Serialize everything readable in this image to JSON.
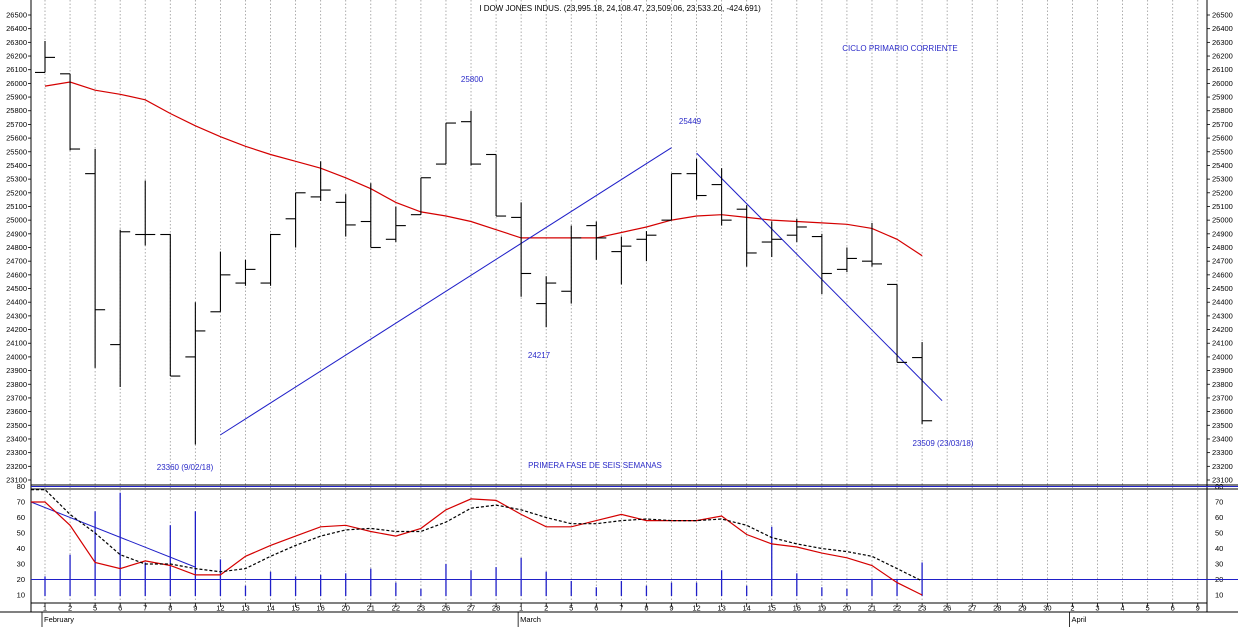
{
  "title": "I DOW JONES INDUS. (23,995.18, 24,108.47, 23,509.06, 23,533.20, -424.691)",
  "colors": {
    "price_bars": "#000000",
    "moving_average": "#d40000",
    "trendlines": "#1f1fc8",
    "annotations": "#2a2ac8",
    "oscillator_fast": "#d40000",
    "oscillator_slow": "#000000",
    "volume_bars": "#1f1fc8",
    "gridlines": "#9a9a9a"
  },
  "chart_data": [
    {
      "type": "ohlc",
      "panel": "price",
      "title": "I DOW JONES INDUS. (23,995.18, 24,108.47, 23,509.06, 23,533.20, -424.691)",
      "ylim": [
        23100,
        26500
      ],
      "y_ticks": [
        26500,
        26400,
        26300,
        26200,
        26100,
        26000,
        25900,
        25800,
        25700,
        25600,
        25500,
        25400,
        25300,
        25200,
        25100,
        25000,
        24900,
        24800,
        24700,
        24600,
        24500,
        24400,
        24300,
        24200,
        24100,
        24000,
        23900,
        23800,
        23700,
        23600,
        23500,
        23400,
        23300,
        23200,
        23100
      ],
      "x_day_labels": [
        "1",
        "2",
        "5",
        "6",
        "7",
        "8",
        "9",
        "12",
        "13",
        "14",
        "15",
        "16",
        "20",
        "21",
        "22",
        "23",
        "26",
        "27",
        "28",
        "1",
        "2",
        "5",
        "6",
        "7",
        "8",
        "9",
        "12",
        "13",
        "14",
        "15",
        "16",
        "19",
        "20",
        "21",
        "22",
        "23",
        "26",
        "27",
        "28",
        "29",
        "30",
        "2",
        "3",
        "4",
        "5",
        "6",
        "9"
      ],
      "x_month_labels": [
        {
          "label": "February",
          "at": "1"
        },
        {
          "label": "March",
          "at": "1"
        },
        {
          "label": "April",
          "at": "2"
        }
      ],
      "bars": [
        {
          "date": "Feb 1",
          "open": 26080,
          "high": 26310,
          "low": 26080,
          "close": 26190
        },
        {
          "date": "Feb 2",
          "open": 26070,
          "high": 26070,
          "low": 25510,
          "close": 25520
        },
        {
          "date": "Feb 5",
          "open": 25340,
          "high": 25520,
          "low": 23920,
          "close": 24345
        },
        {
          "date": "Feb 6",
          "open": 24090,
          "high": 24930,
          "low": 23780,
          "close": 24915
        },
        {
          "date": "Feb 7",
          "open": 24895,
          "high": 25290,
          "low": 24815,
          "close": 24895
        },
        {
          "date": "Feb 8",
          "open": 24895,
          "high": 24900,
          "low": 23860,
          "close": 23860
        },
        {
          "date": "Feb 9",
          "open": 24000,
          "high": 24400,
          "low": 23360,
          "close": 24190
        },
        {
          "date": "Feb 12",
          "open": 24330,
          "high": 24770,
          "low": 24330,
          "close": 24600
        },
        {
          "date": "Feb 13",
          "open": 24540,
          "high": 24710,
          "low": 24520,
          "close": 24640
        },
        {
          "date": "Feb 14",
          "open": 24540,
          "high": 24900,
          "low": 24520,
          "close": 24895
        },
        {
          "date": "Feb 15",
          "open": 25010,
          "high": 25200,
          "low": 24800,
          "close": 25200
        },
        {
          "date": "Feb 16",
          "open": 25170,
          "high": 25430,
          "low": 25140,
          "close": 25220
        },
        {
          "date": "Feb 20",
          "open": 25130,
          "high": 25190,
          "low": 24880,
          "close": 24965
        },
        {
          "date": "Feb 21",
          "open": 24990,
          "high": 25270,
          "low": 24800,
          "close": 24800
        },
        {
          "date": "Feb 22",
          "open": 24860,
          "high": 25100,
          "low": 24840,
          "close": 24960
        },
        {
          "date": "Feb 23",
          "open": 25040,
          "high": 25310,
          "low": 25040,
          "close": 25310
        },
        {
          "date": "Feb 26",
          "open": 25410,
          "high": 25710,
          "low": 25410,
          "close": 25710
        },
        {
          "date": "Feb 27",
          "open": 25720,
          "high": 25800,
          "low": 25400,
          "close": 25410
        },
        {
          "date": "Feb 28",
          "open": 25480,
          "high": 25480,
          "low": 25030,
          "close": 25030
        },
        {
          "date": "Mar 1",
          "open": 25020,
          "high": 25130,
          "low": 24440,
          "close": 24610
        },
        {
          "date": "Mar 2",
          "open": 24390,
          "high": 24590,
          "low": 24217,
          "close": 24540
        },
        {
          "date": "Mar 5",
          "open": 24480,
          "high": 24960,
          "low": 24390,
          "close": 24870
        },
        {
          "date": "Mar 6",
          "open": 24960,
          "high": 24990,
          "low": 24710,
          "close": 24870
        },
        {
          "date": "Mar 7",
          "open": 24770,
          "high": 24880,
          "low": 24530,
          "close": 24810
        },
        {
          "date": "Mar 8",
          "open": 24860,
          "high": 24920,
          "low": 24700,
          "close": 24890
        },
        {
          "date": "Mar 9",
          "open": 25000,
          "high": 25340,
          "low": 25000,
          "close": 25340
        },
        {
          "date": "Mar 12",
          "open": 25340,
          "high": 25449,
          "low": 25150,
          "close": 25180
        },
        {
          "date": "Mar 13",
          "open": 25260,
          "high": 25380,
          "low": 24960,
          "close": 25000
        },
        {
          "date": "Mar 14",
          "open": 25080,
          "high": 25110,
          "low": 24660,
          "close": 24760
        },
        {
          "date": "Mar 15",
          "open": 24840,
          "high": 24990,
          "low": 24730,
          "close": 24860
        },
        {
          "date": "Mar 16",
          "open": 24890,
          "high": 25010,
          "low": 24840,
          "close": 24950
        },
        {
          "date": "Mar 19",
          "open": 24880,
          "high": 24900,
          "low": 24460,
          "close": 24610
        },
        {
          "date": "Mar 20",
          "open": 24640,
          "high": 24800,
          "low": 24620,
          "close": 24720
        },
        {
          "date": "Mar 21",
          "open": 24700,
          "high": 24980,
          "low": 24660,
          "close": 24680
        },
        {
          "date": "Mar 22",
          "open": 24530,
          "high": 24530,
          "low": 23960,
          "close": 23960
        },
        {
          "date": "Mar 23",
          "open": 23995.18,
          "high": 24108.47,
          "low": 23509.06,
          "close": 23533.2
        }
      ],
      "moving_average": [
        {
          "date": "Feb 1",
          "value": 25980
        },
        {
          "date": "Feb 2",
          "value": 26010
        },
        {
          "date": "Feb 5",
          "value": 25950
        },
        {
          "date": "Feb 6",
          "value": 25920
        },
        {
          "date": "Feb 7",
          "value": 25880
        },
        {
          "date": "Feb 8",
          "value": 25780
        },
        {
          "date": "Feb 9",
          "value": 25690
        },
        {
          "date": "Feb 12",
          "value": 25610
        },
        {
          "date": "Feb 13",
          "value": 25540
        },
        {
          "date": "Feb 14",
          "value": 25480
        },
        {
          "date": "Feb 15",
          "value": 25430
        },
        {
          "date": "Feb 16",
          "value": 25380
        },
        {
          "date": "Feb 20",
          "value": 25310
        },
        {
          "date": "Feb 21",
          "value": 25230
        },
        {
          "date": "Feb 22",
          "value": 25130
        },
        {
          "date": "Feb 23",
          "value": 25060
        },
        {
          "date": "Feb 26",
          "value": 25030
        },
        {
          "date": "Feb 27",
          "value": 24990
        },
        {
          "date": "Feb 28",
          "value": 24930
        },
        {
          "date": "Mar 1",
          "value": 24870
        },
        {
          "date": "Mar 2",
          "value": 24870
        },
        {
          "date": "Mar 5",
          "value": 24870
        },
        {
          "date": "Mar 6",
          "value": 24870
        },
        {
          "date": "Mar 7",
          "value": 24910
        },
        {
          "date": "Mar 8",
          "value": 24950
        },
        {
          "date": "Mar 9",
          "value": 25000
        },
        {
          "date": "Mar 12",
          "value": 25030
        },
        {
          "date": "Mar 13",
          "value": 25040
        },
        {
          "date": "Mar 14",
          "value": 25020
        },
        {
          "date": "Mar 15",
          "value": 25000
        },
        {
          "date": "Mar 16",
          "value": 24990
        },
        {
          "date": "Mar 19",
          "value": 24980
        },
        {
          "date": "Mar 20",
          "value": 24970
        },
        {
          "date": "Mar 21",
          "value": 24940
        },
        {
          "date": "Mar 22",
          "value": 24860
        },
        {
          "date": "Mar 23",
          "value": 24740
        }
      ],
      "trendlines": [
        {
          "from": {
            "date": "Feb 12",
            "value": 23430
          },
          "to": {
            "date": "Mar 9",
            "value": 25530
          }
        },
        {
          "from": {
            "date": "Mar 12",
            "value": 25490
          },
          "to": {
            "date": "Mar 23",
            "value": 23680
          }
        }
      ],
      "annotations": [
        {
          "text": "25800",
          "date": "Feb 27",
          "value": 25800
        },
        {
          "text": "25449",
          "date": "Mar 12",
          "value": 25449
        },
        {
          "text": "24217",
          "date": "Mar 2",
          "value": 24217
        },
        {
          "text": "23360 (9/02/18)",
          "date": "Feb 9",
          "value": 23360
        },
        {
          "text": "23509 (23/03/18)",
          "date": "Mar 23",
          "value": 23509
        },
        {
          "text": "CICLO PRIMARIO CORRIENTE",
          "position": "top-right"
        },
        {
          "text": "PRIMERA FASE DE SEIS SEMANAS",
          "position": "bottom-center"
        }
      ]
    },
    {
      "type": "line",
      "panel": "oscillator",
      "ylim": [
        0,
        80
      ],
      "y_ticks": [
        80,
        70,
        60,
        50,
        40,
        30,
        20,
        10
      ],
      "reference_lines": [
        20,
        80
      ],
      "series": [
        {
          "style": "solid",
          "color": "#d40000",
          "values": [
            70,
            55,
            31,
            27,
            32,
            29,
            23,
            23,
            35,
            42,
            48,
            54,
            55,
            51,
            48,
            53,
            65,
            72,
            71,
            62,
            54,
            54,
            58,
            62,
            58,
            58,
            58,
            61,
            49,
            43,
            41,
            37,
            34,
            29,
            18,
            10
          ]
        },
        {
          "style": "dashed",
          "color": "#000000",
          "values": [
            78,
            62,
            50,
            36,
            30,
            30,
            27,
            25,
            27,
            35,
            42,
            48,
            52,
            53,
            51,
            51,
            57,
            66,
            68,
            65,
            60,
            56,
            56,
            58,
            59,
            58,
            58,
            59,
            55,
            47,
            43,
            40,
            38,
            35,
            27,
            19
          ]
        }
      ],
      "trendline": {
        "from": {
          "date": "Feb 1",
          "value": 70
        },
        "to": {
          "date": "Feb 9",
          "value": 28
        }
      },
      "histogram": [
        22,
        36,
        64,
        76,
        31,
        55,
        64,
        33,
        16,
        25,
        22,
        23,
        24,
        27,
        18,
        14,
        30,
        26,
        28,
        34,
        25,
        19,
        15,
        19,
        16,
        18,
        18,
        26,
        16,
        54,
        24,
        15,
        14,
        20,
        20,
        31
      ]
    }
  ]
}
